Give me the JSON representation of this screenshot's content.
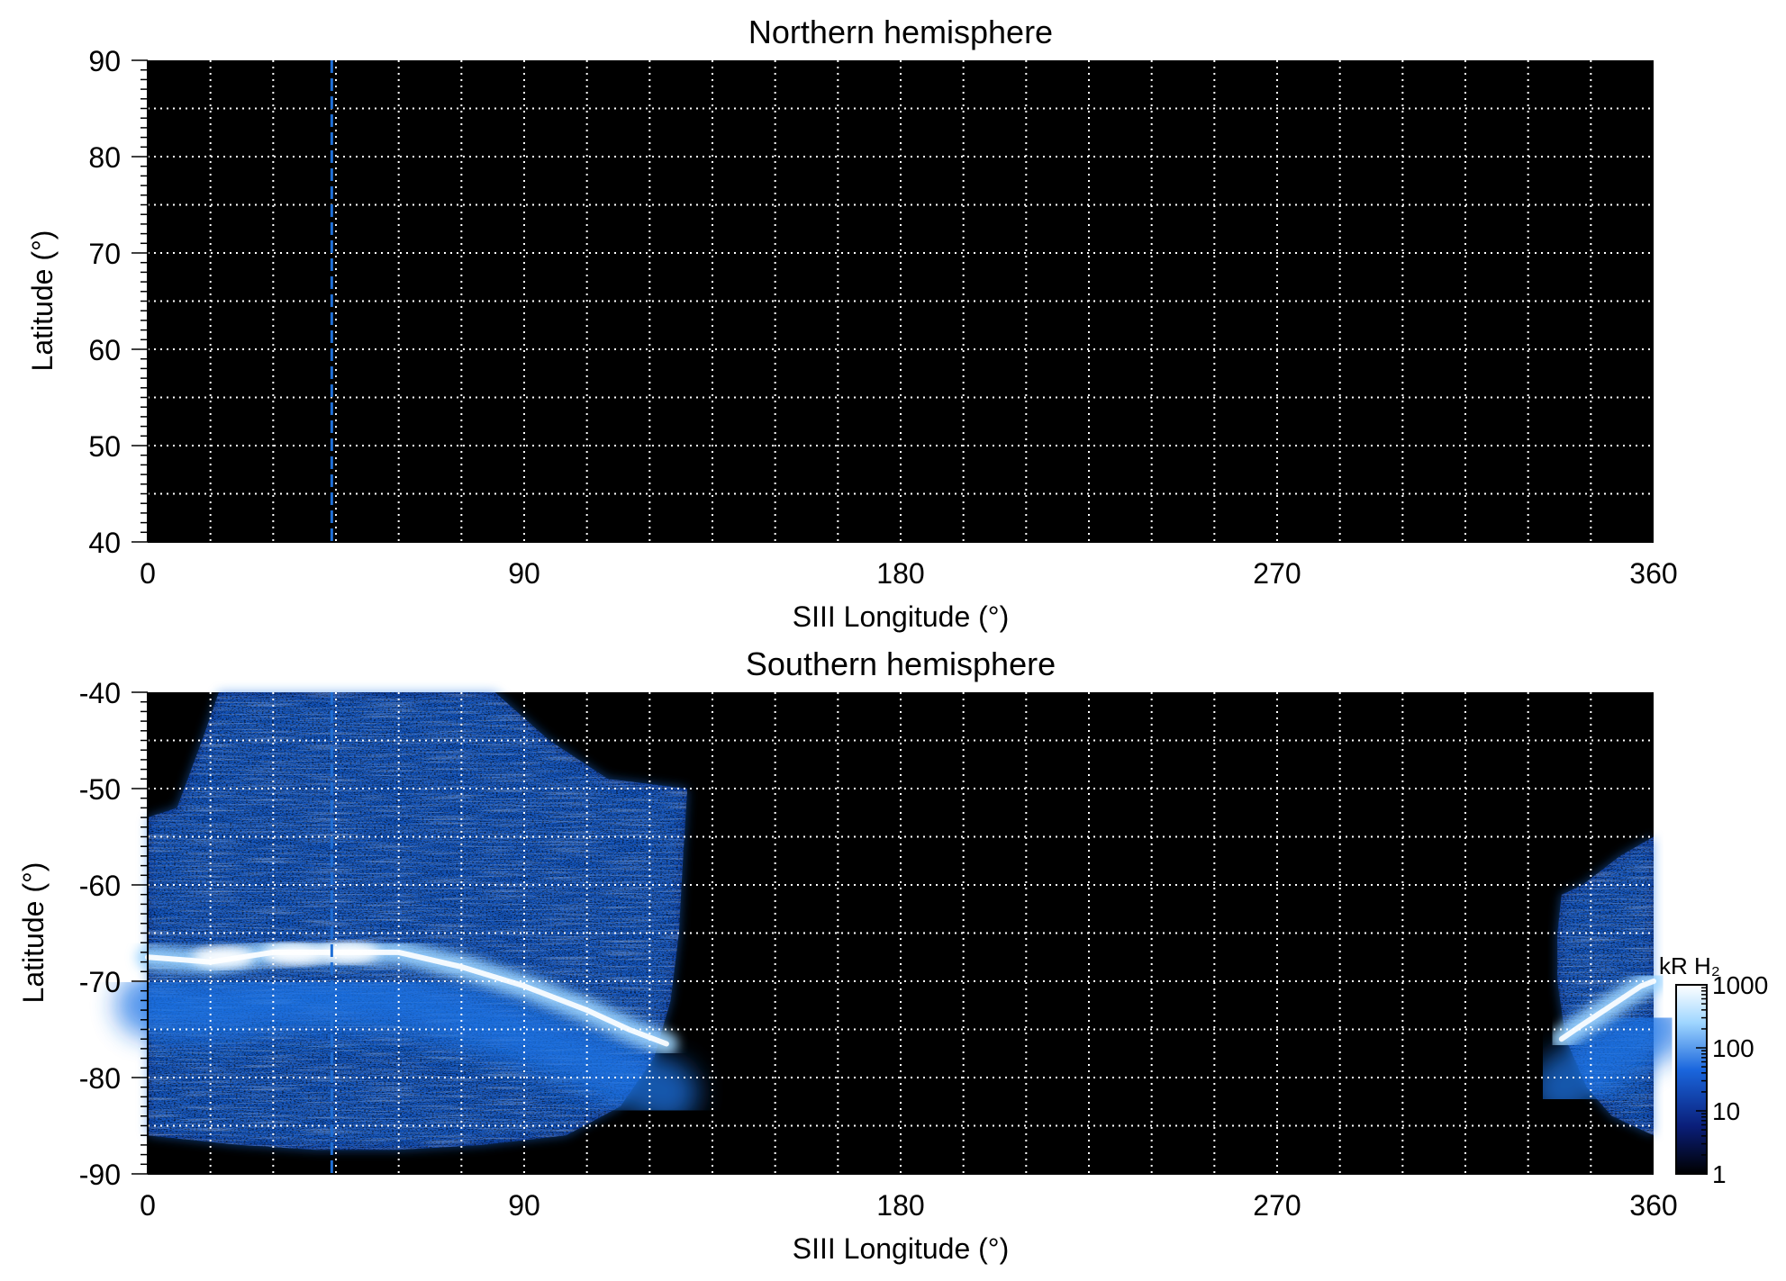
{
  "colorbar": {
    "label": "kR H₂",
    "ticks": [
      1,
      10,
      100,
      1000
    ],
    "colors": [
      "#000000",
      "#0a1e78",
      "#1a66dd",
      "#9fd6ff",
      "#ffffff"
    ]
  },
  "colors": {
    "background": "#000000",
    "grid": "#ffffff",
    "marker_line": "#1f6fd6",
    "emission_low": "#0a2f90",
    "emission_mid": "#1f74e6",
    "emission_high": "#9fd6ff",
    "emission_peak": "#ffffff"
  },
  "chart_data": [
    {
      "type": "heatmap",
      "title": "Northern hemisphere",
      "xlabel": "SIII Longitude (°)",
      "ylabel": "Latitude (°)",
      "xlim": [
        0,
        360
      ],
      "ylim": [
        40,
        90
      ],
      "xticks": [
        0,
        90,
        180,
        270,
        360
      ],
      "yticks": [
        40,
        50,
        60,
        70,
        80,
        90
      ],
      "grid": true,
      "grid_step_x": 15,
      "grid_step_y": 5,
      "marker_longitude": 44,
      "emission": []
    },
    {
      "type": "heatmap",
      "title": "Southern hemisphere",
      "xlabel": "SIII Longitude (°)",
      "ylabel": "Latitude (°)",
      "xlim": [
        0,
        360
      ],
      "ylim": [
        -90,
        -40
      ],
      "xticks": [
        0,
        90,
        180,
        270,
        360
      ],
      "yticks": [
        -90,
        -80,
        -70,
        -60,
        -50,
        -40
      ],
      "grid": true,
      "grid_step_x": 15,
      "grid_step_y": 5,
      "marker_longitude": 44,
      "emission_regions": [
        {
          "name": "coverage-region-west",
          "boundary": [
            [
              0,
              -53
            ],
            [
              7,
              -52
            ],
            [
              13,
              -45
            ],
            [
              17,
              -40
            ],
            [
              83,
              -40
            ],
            [
              96,
              -45
            ],
            [
              110,
              -49
            ],
            [
              129,
              -50
            ],
            [
              128,
              -57
            ],
            [
              127,
              -65
            ],
            [
              125,
              -72
            ],
            [
              121,
              -78
            ],
            [
              113,
              -83
            ],
            [
              100,
              -86
            ],
            [
              80,
              -87
            ],
            [
              60,
              -87.5
            ],
            [
              40,
              -87.5
            ],
            [
              22,
              -87
            ],
            [
              0,
              -86
            ]
          ]
        },
        {
          "name": "coverage-region-east",
          "boundary": [
            [
              360,
              -55
            ],
            [
              352,
              -57
            ],
            [
              343,
              -60
            ],
            [
              338,
              -61
            ],
            [
              337,
              -65
            ],
            [
              337,
              -70
            ],
            [
              339,
              -76
            ],
            [
              344,
              -81
            ],
            [
              350,
              -84
            ],
            [
              360,
              -86
            ]
          ]
        }
      ],
      "main_oval": [
        {
          "name": "main-oval-west",
          "points": [
            [
              0,
              -67.5
            ],
            [
              15,
              -68
            ],
            [
              30,
              -67
            ],
            [
              45,
              -67
            ],
            [
              60,
              -67
            ],
            [
              75,
              -68.5
            ],
            [
              90,
              -70.5
            ],
            [
              105,
              -73
            ],
            [
              115,
              -75
            ],
            [
              124,
              -76.5
            ]
          ],
          "kR": 1000
        },
        {
          "name": "main-oval-east",
          "points": [
            [
              338,
              -76
            ],
            [
              343,
              -74.5
            ],
            [
              350,
              -72.5
            ],
            [
              357,
              -70.5
            ],
            [
              360,
              -70
            ]
          ],
          "kR": 1000
        }
      ],
      "bright_patches": [
        {
          "lon": 18,
          "lat": -67.5,
          "kR": 1000
        },
        {
          "lon": 35,
          "lat": -67.2,
          "kR": 1000
        },
        {
          "lon": 48,
          "lat": -67.0,
          "kR": 1000
        }
      ]
    }
  ]
}
